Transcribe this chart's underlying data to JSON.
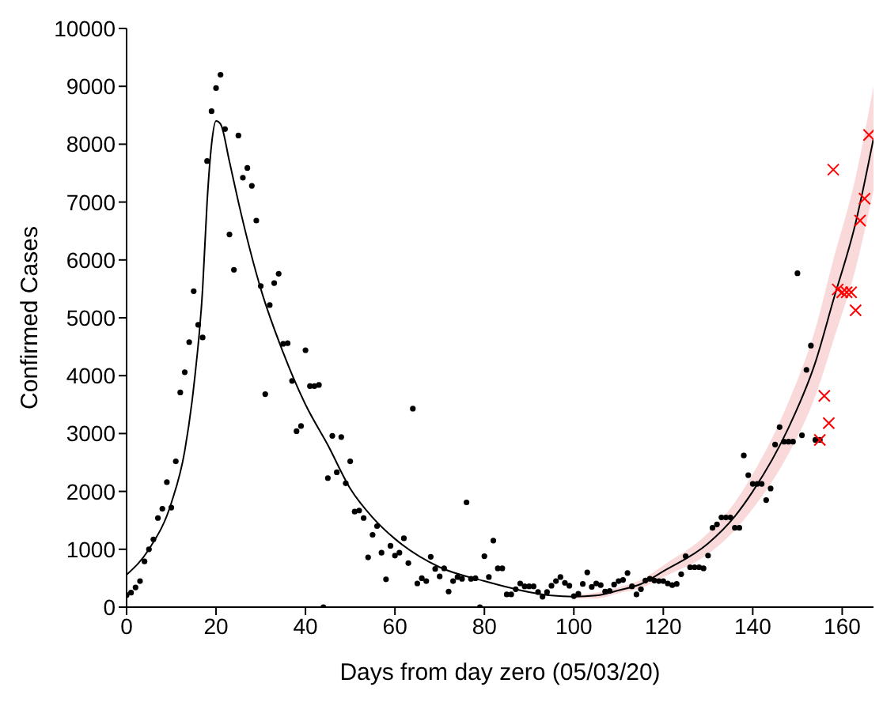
{
  "chart_data": {
    "type": "scatter",
    "xlabel": "Days from day zero (05/03/20)",
    "ylabel": "Confirmed Cases",
    "xlim": [
      0,
      167
    ],
    "xticks": [
      0,
      20,
      40,
      60,
      80,
      100,
      120,
      140,
      160
    ],
    "ylim": [
      0,
      10000
    ],
    "yticks": [
      0,
      1000,
      2000,
      3000,
      4000,
      5000,
      6000,
      7000,
      8000,
      9000,
      10000
    ],
    "grid": false,
    "legend": false,
    "series": [
      {
        "marker": "circle",
        "color": "#000000",
        "x": [
          0,
          1,
          2,
          3,
          4,
          5,
          6,
          7,
          8,
          9,
          10,
          11,
          12,
          13,
          14,
          15,
          16,
          17,
          18,
          19,
          20,
          21,
          22,
          23,
          24,
          25,
          26,
          27,
          28,
          29,
          30,
          31,
          32,
          33,
          34,
          35,
          36,
          37,
          38,
          39,
          40,
          41,
          42,
          43,
          44,
          45,
          46,
          47,
          48,
          49,
          50,
          51,
          52,
          53,
          54,
          55,
          56,
          57,
          58,
          59,
          60,
          61,
          62,
          63,
          64,
          65,
          66,
          67,
          68,
          69,
          70,
          71,
          72,
          73,
          74,
          75,
          76,
          77,
          78,
          79,
          80,
          81,
          82,
          83,
          84,
          85,
          86,
          87,
          88,
          89,
          90,
          91,
          92,
          93,
          94,
          95,
          96,
          97,
          98,
          99,
          100,
          101,
          102,
          103,
          104,
          105,
          106,
          107,
          108,
          109,
          110,
          111,
          112,
          113,
          114,
          115,
          116,
          117,
          118,
          119,
          120,
          121,
          122,
          123,
          124,
          125,
          126,
          127,
          128,
          129,
          130,
          131,
          132,
          133,
          134,
          135,
          136,
          137,
          138,
          139,
          140,
          141,
          142,
          143,
          144,
          145,
          146,
          147,
          148,
          149,
          150,
          151,
          152,
          153,
          154,
          155
        ],
        "values": [
          210,
          250,
          340,
          450,
          790,
          1000,
          1170,
          1540,
          1700,
          2160,
          1720,
          2520,
          3710,
          4060,
          4580,
          5460,
          4880,
          4660,
          7710,
          8570,
          8970,
          9200,
          8260,
          6440,
          5830,
          8150,
          7420,
          7590,
          7280,
          6680,
          5550,
          3680,
          5220,
          5600,
          5760,
          4550,
          4560,
          3910,
          3040,
          3130,
          4440,
          3820,
          3820,
          3840,
          0,
          2230,
          2960,
          2330,
          2940,
          2140,
          2520,
          1650,
          1670,
          1540,
          860,
          1250,
          1400,
          940,
          480,
          1060,
          890,
          940,
          1190,
          760,
          3430,
          410,
          500,
          450,
          870,
          660,
          530,
          670,
          270,
          450,
          520,
          490,
          1810,
          490,
          500,
          0,
          880,
          520,
          1150,
          670,
          670,
          220,
          220,
          310,
          410,
          360,
          360,
          360,
          260,
          180,
          260,
          370,
          450,
          520,
          420,
          370,
          190,
          230,
          400,
          600,
          350,
          410,
          380,
          270,
          280,
          390,
          450,
          470,
          590,
          360,
          220,
          310,
          460,
          490,
          460,
          450,
          450,
          410,
          380,
          400,
          570,
          880,
          690,
          690,
          690,
          670,
          890,
          1370,
          1430,
          1550,
          1550,
          1550,
          1370,
          1370,
          2620,
          2280,
          2130,
          2130,
          2130,
          1850,
          2050,
          2810,
          3110,
          2860,
          2860,
          2860,
          5770,
          2970,
          4100,
          4520,
          2890,
          2890
        ]
      },
      {
        "type": "scatter",
        "marker": "cross",
        "color": "#ff0000",
        "x": [
          155,
          156,
          157,
          158,
          159,
          160,
          161,
          162,
          163,
          164,
          165,
          166
        ],
        "values": [
          2890,
          3650,
          3180,
          7560,
          5490,
          5440,
          5440,
          5440,
          5130,
          6680,
          7060,
          8160
        ]
      },
      {
        "type": "line",
        "marker": "none",
        "color": "#000000",
        "x": [
          0,
          5,
          10,
          13,
          15,
          17,
          18,
          19,
          20,
          21,
          23,
          25,
          30,
          35,
          40,
          45,
          50,
          55,
          60,
          70,
          80,
          90,
          95,
          100,
          105,
          110,
          115,
          120,
          130,
          136,
          140,
          148,
          154,
          158,
          163,
          167
        ],
        "values": [
          560,
          1000,
          1800,
          2700,
          3800,
          5500,
          7000,
          8000,
          8400,
          8350,
          7700,
          7000,
          5500,
          4400,
          3500,
          2800,
          2050,
          1550,
          1180,
          690,
          450,
          260,
          200,
          180,
          200,
          290,
          400,
          620,
          1100,
          1570,
          2000,
          3100,
          4230,
          5300,
          6640,
          8100
        ],
        "lower": [
          null,
          null,
          null,
          null,
          null,
          null,
          null,
          null,
          null,
          null,
          null,
          null,
          null,
          null,
          null,
          null,
          null,
          null,
          null,
          null,
          null,
          null,
          null,
          150,
          150,
          240,
          330,
          520,
          920,
          1330,
          1700,
          2650,
          3650,
          4600,
          5850,
          7200
        ],
        "upper": [
          null,
          null,
          null,
          null,
          null,
          null,
          null,
          null,
          null,
          null,
          null,
          null,
          null,
          null,
          null,
          null,
          null,
          null,
          null,
          null,
          null,
          null,
          null,
          210,
          250,
          340,
          470,
          720,
          1280,
          1810,
          2300,
          3550,
          4810,
          6000,
          7430,
          9000
        ]
      }
    ]
  }
}
